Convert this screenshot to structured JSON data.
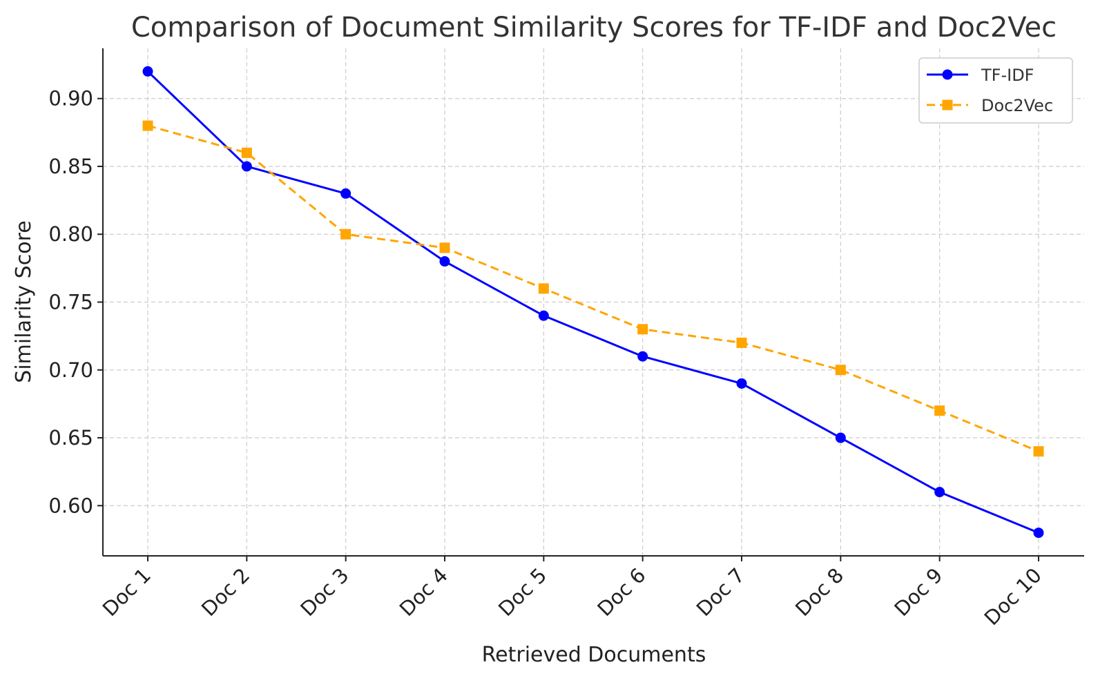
{
  "chart_data": {
    "type": "line",
    "title": "Comparison of Document Similarity Scores for TF-IDF and Doc2Vec",
    "xlabel": "Retrieved Documents",
    "ylabel": "Similarity Score",
    "categories": [
      "Doc 1",
      "Doc 2",
      "Doc 3",
      "Doc 4",
      "Doc 5",
      "Doc 6",
      "Doc 7",
      "Doc 8",
      "Doc 9",
      "Doc 10"
    ],
    "ylim": [
      0.563,
      0.937
    ],
    "yticks": [
      0.6,
      0.65,
      0.7,
      0.75,
      0.8,
      0.85,
      0.9
    ],
    "ytick_labels": [
      "0.60",
      "0.65",
      "0.70",
      "0.75",
      "0.80",
      "0.85",
      "0.90"
    ],
    "grid": true,
    "legend_position": "top-right",
    "series": [
      {
        "name": "TF-IDF",
        "color": "#0000ff",
        "line_style": "solid",
        "marker": "circle",
        "values": [
          0.92,
          0.85,
          0.83,
          0.78,
          0.74,
          0.71,
          0.69,
          0.65,
          0.61,
          0.58
        ]
      },
      {
        "name": "Doc2Vec",
        "color": "#ffa500",
        "line_style": "dashed",
        "marker": "square",
        "values": [
          0.88,
          0.86,
          0.8,
          0.79,
          0.76,
          0.73,
          0.72,
          0.7,
          0.67,
          0.64
        ]
      }
    ]
  }
}
